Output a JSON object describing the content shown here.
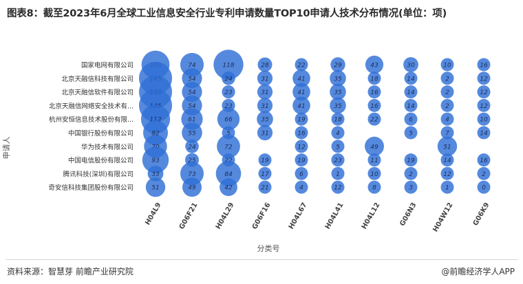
{
  "title": "图表8：截至2023年6月全球工业信息安全行业专利申请数量TOP10申请人技术分布情况(单位：项)",
  "footer": {
    "source": "资料来源：智慧芽 前瞻产业研究院",
    "credit": "@前瞻经济学人APP"
  },
  "colors": {
    "bubble_fill": "#2f6fd6",
    "bubble_label": "#1a2e5a",
    "title": "#2a2a2a"
  },
  "chart_data": {
    "type": "bubble",
    "xlabel": "分类号",
    "ylabel": "申请人",
    "categories": [
      "H04L9",
      "G06F21",
      "H04L29",
      "G06F16",
      "H04L67",
      "H04L41",
      "H04L12",
      "G06N3",
      "H04W12",
      "G06K9"
    ],
    "applicants": [
      "国家电网有限公司",
      "北京天融信科技有限公司",
      "北京天融信软件有限公司",
      "北京天融信网络安全技术有...",
      "杭州安恒信息技术股份有限...",
      "中国银行股份有限公司",
      "华为技术有限公司",
      "中国电信股份有限公司",
      "腾讯科技(深圳)有限公司",
      "奇安信科技集团股份有限公司"
    ],
    "values": [
      [
        105,
        74,
        118,
        28,
        22,
        29,
        43,
        30,
        10,
        16
      ],
      [
        145,
        54,
        24,
        31,
        41,
        35,
        18,
        14,
        2,
        12
      ],
      [
        145,
        54,
        23,
        31,
        41,
        35,
        16,
        14,
        2,
        12
      ],
      [
        145,
        54,
        23,
        31,
        41,
        35,
        16,
        14,
        2,
        12
      ],
      [
        112,
        61,
        66,
        35,
        19,
        18,
        22,
        6,
        4,
        10
      ],
      [
        82,
        55,
        5,
        31,
        16,
        4,
        null,
        5,
        7,
        14
      ],
      [
        70,
        24,
        72,
        null,
        12,
        5,
        49,
        null,
        51,
        null
      ],
      [
        93,
        25,
        22,
        19,
        19,
        23,
        11,
        19,
        14,
        16
      ],
      [
        33,
        73,
        84,
        17,
        6,
        1,
        10,
        2,
        12,
        2
      ],
      [
        51,
        49,
        42,
        21,
        4,
        12,
        8,
        3,
        1,
        0
      ]
    ]
  }
}
